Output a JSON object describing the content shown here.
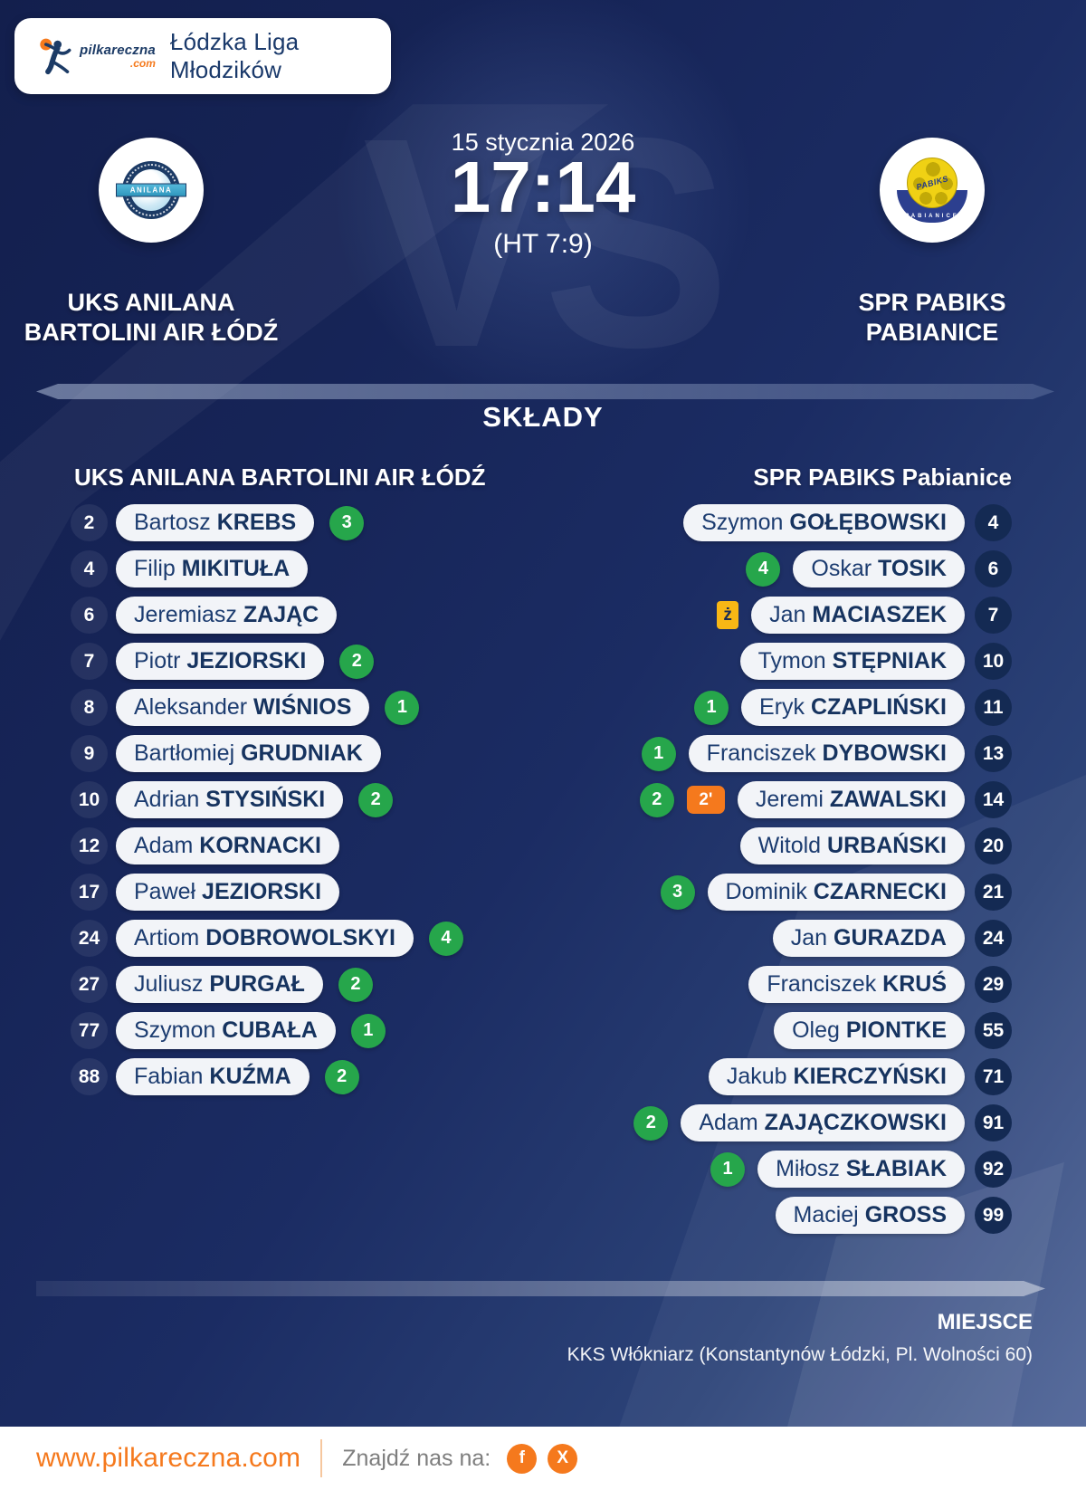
{
  "header": {
    "brand": "pilkareczna",
    "brand_tld": ".com",
    "league": "Łódzka Liga Młodzików"
  },
  "match": {
    "date": "15 stycznia 2026",
    "time": "17:14",
    "halftime": "(HT 7:9)",
    "vs_watermark": "VS",
    "home": {
      "name_line1": "UKS ANILANA",
      "name_line2": "BARTOLINI AIR ŁÓDŹ",
      "logo_text": "ANILANA"
    },
    "away": {
      "name_line1": "SPR PABIKS",
      "name_line2": "PABIANICE",
      "logo_text": "PABIKS",
      "logo_ribbon": "PABIANICE"
    }
  },
  "lineups": {
    "title": "SKŁADY",
    "home_header": "UKS ANILANA BARTOLINI AIR ŁÓDŹ",
    "away_header": "SPR PABIKS Pabianice",
    "home_players": [
      {
        "number": "2",
        "first": "Bartosz",
        "last": "KREBS",
        "goals": "3"
      },
      {
        "number": "4",
        "first": "Filip",
        "last": "MIKITUŁA"
      },
      {
        "number": "6",
        "first": "Jeremiasz",
        "last": "ZAJĄC"
      },
      {
        "number": "7",
        "first": "Piotr",
        "last": "JEZIORSKI",
        "goals": "2"
      },
      {
        "number": "8",
        "first": "Aleksander",
        "last": "WIŚNIOS",
        "goals": "1"
      },
      {
        "number": "9",
        "first": "Bartłomiej",
        "last": "GRUDNIAK"
      },
      {
        "number": "10",
        "first": "Adrian",
        "last": "STYSIŃSKI",
        "goals": "2"
      },
      {
        "number": "12",
        "first": "Adam",
        "last": "KORNACKI"
      },
      {
        "number": "17",
        "first": "Paweł",
        "last": "JEZIORSKI"
      },
      {
        "number": "24",
        "first": "Artiom",
        "last": "DOBROWOLSKYI",
        "goals": "4"
      },
      {
        "number": "27",
        "first": "Juliusz",
        "last": "PURGAŁ",
        "goals": "2"
      },
      {
        "number": "77",
        "first": "Szymon",
        "last": "CUBAŁA",
        "goals": "1"
      },
      {
        "number": "88",
        "first": "Fabian",
        "last": "KUŹMA",
        "goals": "2"
      }
    ],
    "away_players": [
      {
        "number": "4",
        "first": "Szymon",
        "last": "GOŁĘBOWSKI"
      },
      {
        "number": "6",
        "first": "Oskar",
        "last": "TOSIK",
        "goals": "4"
      },
      {
        "number": "7",
        "first": "Jan",
        "last": "MACIASZEK",
        "yellow": true
      },
      {
        "number": "10",
        "first": "Tymon",
        "last": "STĘPNIAK"
      },
      {
        "number": "11",
        "first": "Eryk",
        "last": "CZAPLIŃSKI",
        "goals": "1"
      },
      {
        "number": "13",
        "first": "Franciszek",
        "last": "DYBOWSKI",
        "goals": "1"
      },
      {
        "number": "14",
        "first": "Jeremi",
        "last": "ZAWALSKI",
        "goals": "2",
        "two_min": "2'"
      },
      {
        "number": "20",
        "first": "Witold",
        "last": "URBAŃSKI"
      },
      {
        "number": "21",
        "first": "Dominik",
        "last": "CZARNECKI",
        "goals": "3"
      },
      {
        "number": "24",
        "first": "Jan",
        "last": "GURAZDA"
      },
      {
        "number": "29",
        "first": "Franciszek",
        "last": "KRUŚ"
      },
      {
        "number": "55",
        "first": "Oleg",
        "last": "PIONTKE"
      },
      {
        "number": "71",
        "first": "Jakub",
        "last": "KIERCZYŃSKI"
      },
      {
        "number": "91",
        "first": "Adam",
        "last": "ZAJĄCZKOWSKI",
        "goals": "2"
      },
      {
        "number": "92",
        "first": "Miłosz",
        "last": "SŁABIAK",
        "goals": "1"
      },
      {
        "number": "99",
        "first": "Maciej",
        "last": "GROSS"
      }
    ]
  },
  "legend": {
    "yellow_card": "ż"
  },
  "venue": {
    "label": "MIEJSCE",
    "value": "KKS Włókniarz (Konstantynów Łódzki, Pl. Wolności 60)"
  },
  "footer": {
    "website": "www.pilkareczna.com",
    "find_us": "Znajdź nas na:",
    "social_facebook": "f",
    "social_x": "X"
  },
  "colors": {
    "accent_orange": "#f5791d",
    "goal_green": "#26a64b",
    "card_yellow": "#f8b715",
    "navy": "#1c3b66",
    "pill_bg": "#f2f4f8"
  }
}
